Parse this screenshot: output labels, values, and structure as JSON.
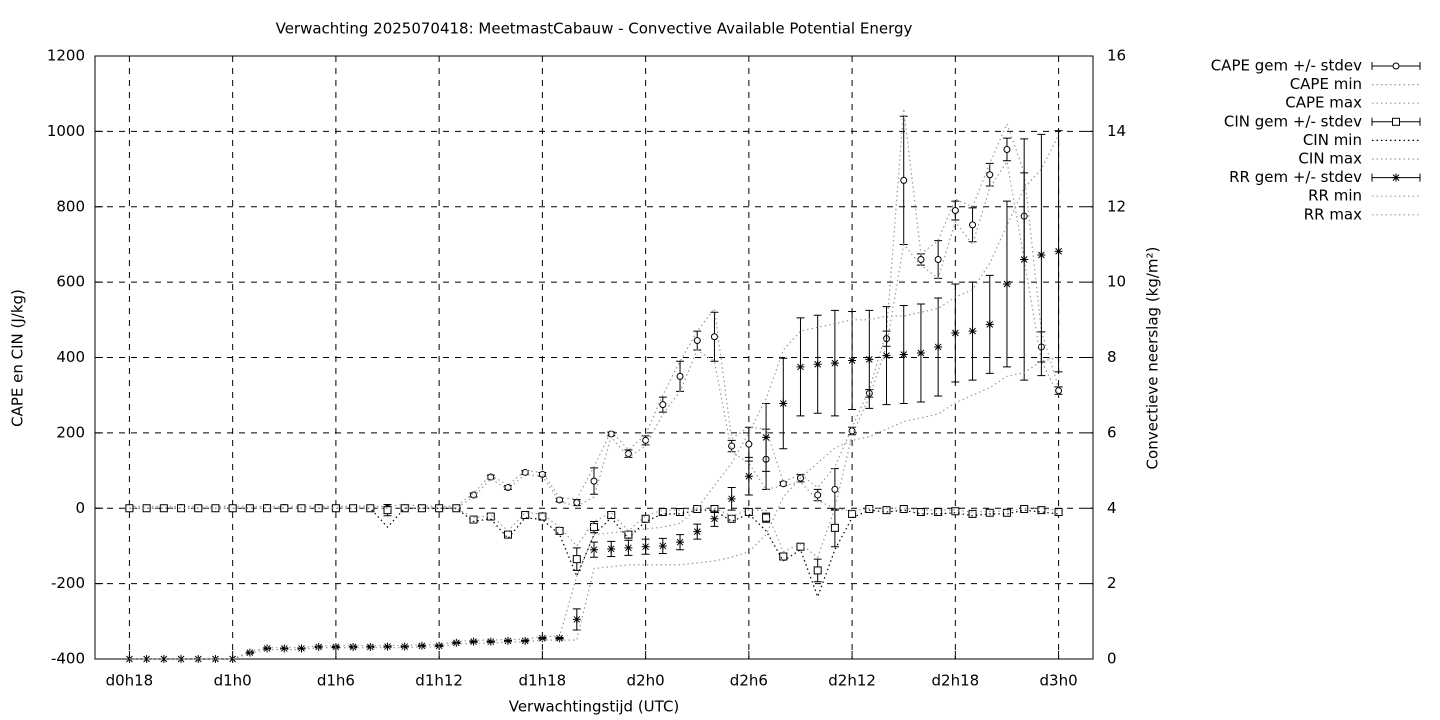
{
  "chart_data": {
    "type": "errorbar-line",
    "title": "Verwachting 2025070418: MeetmastCabauw - Convective Available Potential Energy",
    "xlabel": "Verwachtingstijd (UTC)",
    "ylabel": "CAPE en CIN (J/kg)",
    "y2label": "Convectieve neerslag (kg/m²)",
    "x": [
      18,
      19,
      20,
      21,
      22,
      23,
      24,
      25,
      26,
      27,
      28,
      29,
      30,
      31,
      32,
      33,
      34,
      35,
      36,
      37,
      38,
      39,
      40,
      41,
      42,
      43,
      44,
      45,
      46,
      47,
      48,
      49,
      50,
      51,
      52,
      53,
      54,
      55,
      56,
      57,
      58,
      59,
      60,
      61,
      62,
      63,
      64,
      65,
      66,
      67,
      68,
      69,
      70,
      71,
      72
    ],
    "xlim": [
      16,
      74
    ],
    "xticks": [
      {
        "value": 18,
        "label": "d0h18"
      },
      {
        "value": 24,
        "label": "d1h0"
      },
      {
        "value": 30,
        "label": "d1h6"
      },
      {
        "value": 36,
        "label": "d1h12"
      },
      {
        "value": 42,
        "label": "d1h18"
      },
      {
        "value": 48,
        "label": "d2h0"
      },
      {
        "value": 54,
        "label": "d2h6"
      },
      {
        "value": 60,
        "label": "d2h12"
      },
      {
        "value": 66,
        "label": "d2h18"
      },
      {
        "value": 72,
        "label": "d3h0"
      }
    ],
    "ylim": [
      -400,
      1200
    ],
    "yticks": [
      -400,
      -200,
      0,
      200,
      400,
      600,
      800,
      1000,
      1200
    ],
    "y2lim": [
      0,
      16
    ],
    "y2ticks": [
      0,
      2,
      4,
      6,
      8,
      10,
      12,
      14,
      16
    ],
    "grid": true,
    "legend": "outside-top-right",
    "series": [
      {
        "name": "CAPE gem +/- stdev",
        "style": "errorbars",
        "marker": "circle",
        "color": "#000000",
        "values": [
          0,
          0,
          0,
          2,
          0,
          0,
          0,
          0,
          2,
          2,
          0,
          2,
          0,
          0,
          0,
          0,
          0,
          0,
          0,
          0,
          35,
          83,
          55,
          95,
          90,
          22,
          15,
          72,
          197,
          145,
          180,
          275,
          350,
          445,
          455,
          165,
          170,
          130,
          65,
          80,
          35,
          50,
          205,
          305,
          450,
          870,
          660,
          660,
          790,
          752,
          885,
          952,
          775,
          428,
          312
        ],
        "errors": [
          3,
          3,
          3,
          3,
          3,
          3,
          3,
          3,
          3,
          3,
          3,
          3,
          3,
          3,
          3,
          3,
          3,
          3,
          3,
          3,
          5,
          5,
          5,
          5,
          5,
          5,
          8,
          35,
          5,
          10,
          12,
          20,
          40,
          25,
          65,
          15,
          45,
          80,
          5,
          10,
          15,
          55,
          10,
          10,
          20,
          170,
          15,
          50,
          25,
          45,
          30,
          30,
          115,
          40,
          10
        ]
      },
      {
        "name": "CAPE min",
        "style": "dotted",
        "color": "#999999",
        "values": [
          0,
          0,
          0,
          0,
          0,
          0,
          0,
          0,
          0,
          0,
          0,
          0,
          0,
          0,
          0,
          0,
          0,
          0,
          0,
          0,
          30,
          78,
          50,
          90,
          85,
          18,
          5,
          30,
          190,
          135,
          165,
          250,
          310,
          420,
          390,
          150,
          120,
          50,
          60,
          70,
          20,
          0,
          195,
          295,
          430,
          700,
          645,
          610,
          760,
          700,
          850,
          920,
          660,
          390,
          300
        ]
      },
      {
        "name": "CAPE max",
        "style": "dotted",
        "color": "#999999",
        "values": [
          5,
          5,
          5,
          5,
          5,
          5,
          5,
          5,
          5,
          5,
          5,
          5,
          5,
          5,
          5,
          5,
          10,
          5,
          5,
          5,
          40,
          88,
          60,
          100,
          95,
          28,
          25,
          110,
          205,
          155,
          195,
          300,
          390,
          470,
          530,
          185,
          215,
          210,
          70,
          90,
          55,
          110,
          215,
          315,
          470,
          1060,
          675,
          710,
          820,
          800,
          915,
          1020,
          890,
          470,
          320
        ]
      },
      {
        "name": "CIN gem +/- stdev",
        "style": "errorbars",
        "marker": "square",
        "color": "#000000",
        "values": [
          0,
          0,
          0,
          0,
          0,
          0,
          0,
          0,
          0,
          0,
          0,
          0,
          0,
          0,
          0,
          -5,
          0,
          0,
          0,
          0,
          -30,
          -22,
          -70,
          -18,
          -22,
          -60,
          -135,
          -50,
          -18,
          -70,
          -28,
          -10,
          -10,
          -2,
          -2,
          -28,
          -10,
          -25,
          -128,
          -102,
          -165,
          -52,
          -15,
          -2,
          -5,
          -2,
          -10,
          -10,
          -8,
          -15,
          -12,
          -12,
          -2,
          -5,
          -10
        ],
        "errors": [
          3,
          3,
          3,
          3,
          3,
          3,
          3,
          3,
          3,
          3,
          3,
          3,
          3,
          3,
          3,
          15,
          3,
          3,
          3,
          3,
          5,
          5,
          5,
          5,
          5,
          8,
          30,
          15,
          5,
          8,
          5,
          5,
          5,
          3,
          3,
          5,
          5,
          12,
          8,
          5,
          30,
          50,
          8,
          3,
          3,
          3,
          3,
          3,
          3,
          3,
          3,
          3,
          3,
          3,
          3
        ]
      },
      {
        "name": "CIN min",
        "style": "dotted",
        "color": "#000000",
        "values": [
          0,
          0,
          0,
          0,
          0,
          0,
          0,
          0,
          0,
          0,
          0,
          0,
          0,
          0,
          0,
          -50,
          0,
          0,
          0,
          0,
          -35,
          -28,
          -80,
          -25,
          -30,
          -70,
          -180,
          -70,
          -25,
          -80,
          -35,
          -15,
          -15,
          -5,
          -5,
          -35,
          -15,
          -60,
          -140,
          -110,
          -235,
          -110,
          -25,
          -5,
          -10,
          -5,
          -15,
          -15,
          -12,
          -20,
          -15,
          -15,
          -5,
          -10,
          -15
        ]
      },
      {
        "name": "CIN max",
        "style": "dotted",
        "color": "#999999",
        "values": [
          0,
          0,
          0,
          0,
          0,
          0,
          0,
          0,
          0,
          0,
          0,
          0,
          0,
          0,
          0,
          0,
          0,
          0,
          0,
          0,
          -25,
          -18,
          -60,
          -12,
          -15,
          -50,
          -100,
          -35,
          -12,
          -60,
          -20,
          -5,
          -5,
          0,
          0,
          -20,
          -5,
          -5,
          -115,
          -95,
          -130,
          0,
          -8,
          0,
          0,
          0,
          -5,
          -5,
          -5,
          -10,
          -8,
          -8,
          0,
          0,
          -5
        ]
      },
      {
        "name": "RR gem +/- stdev",
        "style": "errorbars",
        "marker": "star",
        "color": "#000000",
        "axis": "y2",
        "values": [
          0,
          0,
          0,
          0,
          0,
          0,
          0,
          0.17,
          0.28,
          0.28,
          0.28,
          0.32,
          0.32,
          0.32,
          0.32,
          0.33,
          0.33,
          0.35,
          0.35,
          0.43,
          0.46,
          0.46,
          0.48,
          0.48,
          0.55,
          0.55,
          1.05,
          2.9,
          2.92,
          2.95,
          2.98,
          3.0,
          3.1,
          3.38,
          3.72,
          4.25,
          4.85,
          5.88,
          6.78,
          7.75,
          7.82,
          7.85,
          7.92,
          7.95,
          8.05,
          8.08,
          8.12,
          8.28,
          8.65,
          8.7,
          8.88,
          9.95,
          10.6,
          10.72,
          10.82
        ],
        "errors": [
          0,
          0,
          0,
          0,
          0,
          0,
          0,
          0.02,
          0.02,
          0.02,
          0.02,
          0.02,
          0.02,
          0.02,
          0.02,
          0.02,
          0.02,
          0.02,
          0.02,
          0.02,
          0.02,
          0.02,
          0.02,
          0.02,
          0.02,
          0.02,
          0.28,
          0.2,
          0.2,
          0.2,
          0.2,
          0.2,
          0.2,
          0.2,
          0.2,
          0.3,
          0.5,
          0.9,
          1.2,
          1.3,
          1.3,
          1.4,
          1.3,
          1.3,
          1.3,
          1.3,
          1.3,
          1.3,
          1.3,
          1.3,
          1.3,
          2.2,
          3.2,
          3.2,
          3.2
        ]
      },
      {
        "name": "RR min",
        "style": "dotted",
        "color": "#999999",
        "axis": "y2",
        "values": [
          0,
          0,
          0,
          0,
          0,
          0,
          0,
          0.15,
          0.25,
          0.25,
          0.25,
          0.3,
          0.3,
          0.3,
          0.3,
          0.3,
          0.3,
          0.32,
          0.32,
          0.4,
          0.42,
          0.42,
          0.45,
          0.45,
          0.5,
          0.5,
          0.5,
          2.4,
          2.45,
          2.5,
          2.5,
          2.5,
          2.5,
          2.55,
          2.6,
          2.7,
          2.85,
          3.3,
          4.3,
          4.8,
          5.2,
          5.6,
          5.8,
          5.9,
          6.1,
          6.3,
          6.4,
          6.5,
          6.8,
          7.0,
          7.2,
          7.5,
          7.6,
          7.9,
          8.0
        ]
      },
      {
        "name": "RR max",
        "style": "dotted",
        "color": "#999999",
        "axis": "y2",
        "values": [
          0,
          0,
          0,
          0,
          0,
          0,
          0,
          0.2,
          0.3,
          0.3,
          0.3,
          0.35,
          0.35,
          0.35,
          0.35,
          0.36,
          0.36,
          0.38,
          0.38,
          0.46,
          0.5,
          0.5,
          0.52,
          0.52,
          0.6,
          0.6,
          2.2,
          3.3,
          3.35,
          3.4,
          3.45,
          3.5,
          3.6,
          4.0,
          4.6,
          5.2,
          6.0,
          6.9,
          8.2,
          8.7,
          8.8,
          8.9,
          9.0,
          9.0,
          9.1,
          9.1,
          9.2,
          9.3,
          9.6,
          9.8,
          10.5,
          11.5,
          12.5,
          13.0,
          13.9
        ]
      }
    ]
  }
}
